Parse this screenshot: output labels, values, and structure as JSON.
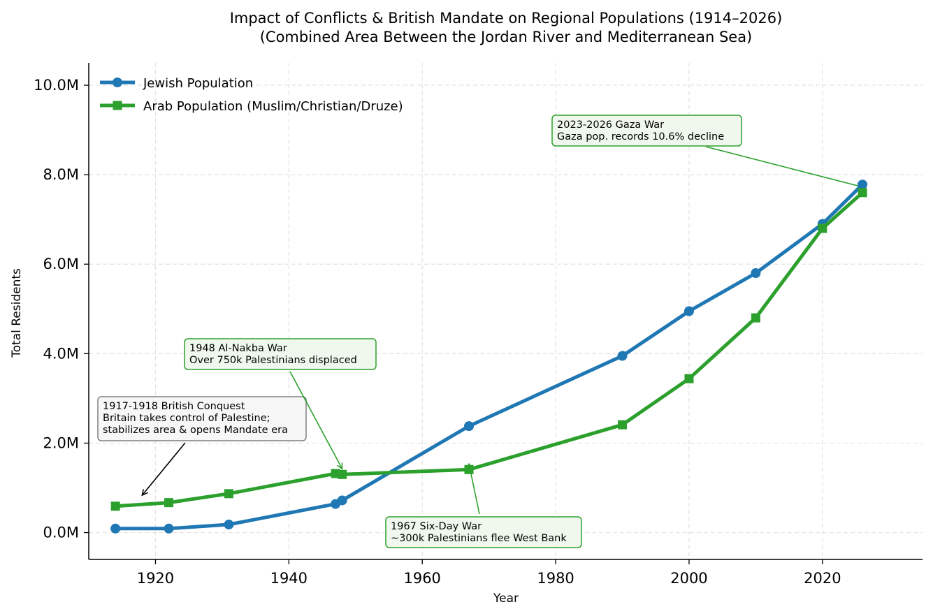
{
  "chart_data": {
    "type": "line",
    "title": "Impact of Conflicts & British Mandate on Regional Populations (1914–2026)",
    "subtitle": "(Combined Area Between the Jordan River and Mediterranean Sea)",
    "xlabel": "Year",
    "ylabel": "Total Residents",
    "xlim": [
      1910,
      2035
    ],
    "ylim": [
      -0.6,
      10.5
    ],
    "y_unit": "millions",
    "xticks": [
      1920,
      1940,
      1960,
      1980,
      2000,
      2020
    ],
    "yticks": [
      0,
      2,
      4,
      6,
      8,
      10
    ],
    "ytick_labels": [
      "0.0M",
      "2.0M",
      "4.0M",
      "6.0M",
      "8.0M",
      "10.0M"
    ],
    "grid": true,
    "legend_position": "top-left",
    "series": [
      {
        "name": "Jewish Population",
        "color": "#1f77b4",
        "marker": "circle",
        "points": [
          [
            1914,
            0.09
          ],
          [
            1922,
            0.09
          ],
          [
            1931,
            0.18
          ],
          [
            1947,
            0.64
          ],
          [
            1948,
            0.72
          ],
          [
            1967,
            2.38
          ],
          [
            1990,
            3.95
          ],
          [
            2000,
            4.95
          ],
          [
            2010,
            5.8
          ],
          [
            2020,
            6.9
          ],
          [
            2026,
            7.78
          ]
        ]
      },
      {
        "name": "Arab Population (Muslim/Christian/Druze)",
        "color": "#2ca02c",
        "marker": "square",
        "points": [
          [
            1914,
            0.59
          ],
          [
            1922,
            0.67
          ],
          [
            1931,
            0.87
          ],
          [
            1947,
            1.32
          ],
          [
            1948,
            1.3
          ],
          [
            1967,
            1.41
          ],
          [
            1990,
            2.41
          ],
          [
            2000,
            3.44
          ],
          [
            2010,
            4.8
          ],
          [
            2020,
            6.8
          ],
          [
            2026,
            7.6
          ]
        ]
      }
    ],
    "annotations": [
      {
        "lines": [
          "1917-1918 British Conquest",
          "Britain takes control of Palestine;",
          "stabilizes area & opens Mandate era"
        ],
        "target": [
          1918,
          0.71
        ],
        "color": "#000000",
        "box_edge": "#7f7f7f",
        "box_fill": "#f7f7f7"
      },
      {
        "lines": [
          "1948 Al-Nakba War",
          "Over 750k Palestinians displaced"
        ],
        "target": [
          1948,
          1.3
        ],
        "color": "#2ca02c",
        "box_edge": "#2ca02c",
        "box_fill": "#f0f8ee"
      },
      {
        "lines": [
          "1967 Six-Day War",
          "~300k Palestinians flee West Bank"
        ],
        "target": [
          1967,
          1.41
        ],
        "color": "#2ca02c",
        "box_edge": "#2ca02c",
        "box_fill": "#f0f8ee"
      },
      {
        "lines": [
          "2023-2026 Gaza War",
          "Gaza pop. records 10.6% decline"
        ],
        "target": [
          2026,
          7.6
        ],
        "color": "#2ca02c",
        "box_edge": "#2ca02c",
        "box_fill": "#f0f8ee"
      }
    ]
  }
}
